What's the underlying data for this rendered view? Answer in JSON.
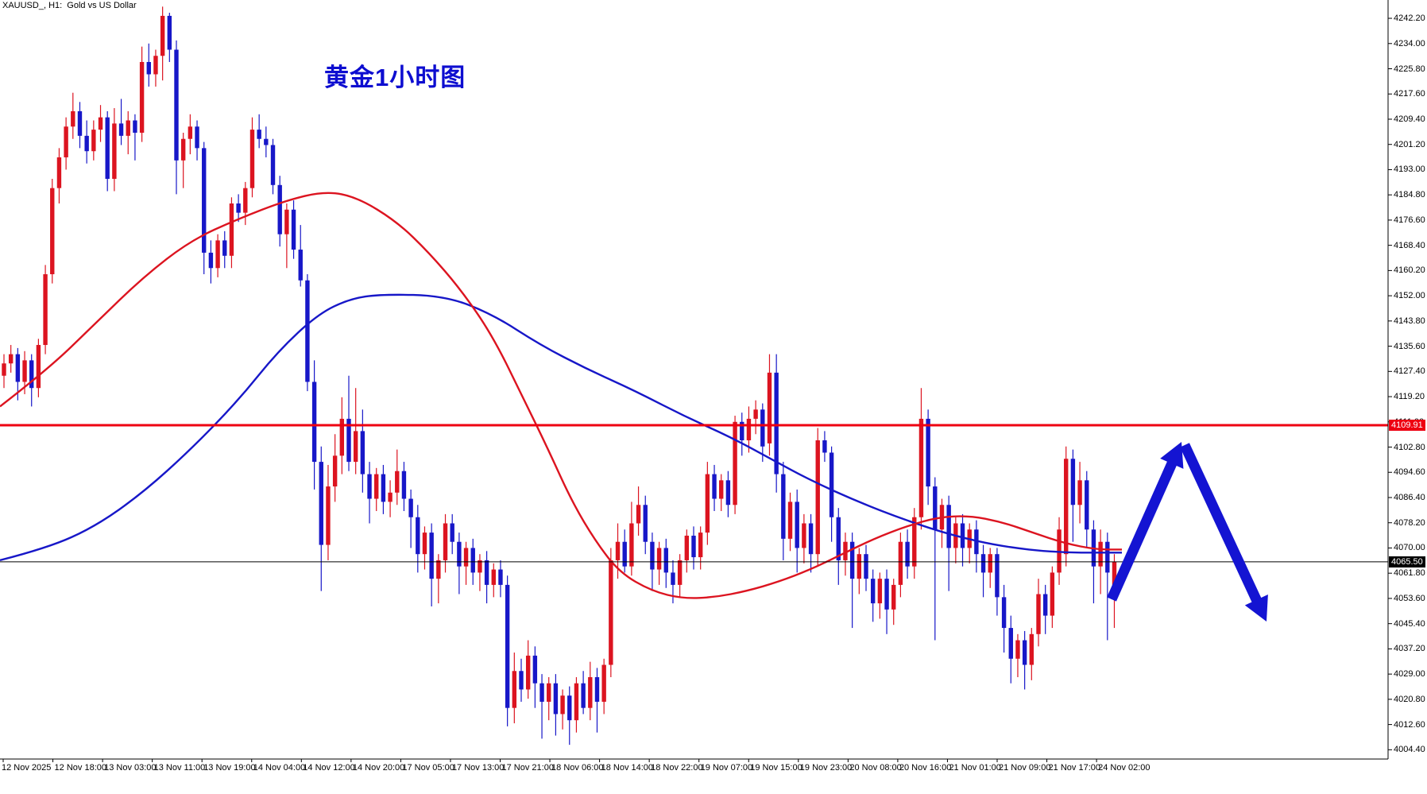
{
  "window": {
    "title": "XAUUSD_, H1:  Gold vs US Dollar"
  },
  "annotation": {
    "label": "黄金1小时图",
    "color": "#0d0dd0"
  },
  "colors": {
    "background": "#ffffff",
    "bull_candle": "#dc1420",
    "bear_candle": "#1717c8",
    "ma_red": "#dc1420",
    "ma_blue": "#1717c8",
    "resistance_line": "#ee0011",
    "bid_line": "#000000",
    "axis": "#000000",
    "arrow": "#1414d2"
  },
  "y_axis": {
    "labels": [
      "4242.20",
      "4234.00",
      "4225.80",
      "4217.60",
      "4209.40",
      "4201.20",
      "4193.00",
      "4184.80",
      "4176.60",
      "4168.40",
      "4160.20",
      "4152.00",
      "4143.80",
      "4135.60",
      "4127.40",
      "4119.20",
      "4111.00",
      "4102.80",
      "4094.60",
      "4086.40",
      "4078.20",
      "4070.00",
      "4061.80",
      "4053.60",
      "4045.40",
      "4037.20",
      "4029.00",
      "4020.80",
      "4012.60",
      "4004.40"
    ]
  },
  "x_axis": {
    "labels": [
      "12 Nov 2025",
      "12 Nov 18:00",
      "13 Nov 03:00",
      "13 Nov 11:00",
      "13 Nov 19:00",
      "14 Nov 04:00",
      "14 Nov 12:00",
      "14 Nov 20:00",
      "17 Nov 05:00",
      "17 Nov 13:00",
      "17 Nov 21:00",
      "18 Nov 06:00",
      "18 Nov 14:00",
      "18 Nov 22:00",
      "19 Nov 07:00",
      "19 Nov 15:00",
      "19 Nov 23:00",
      "20 Nov 08:00",
      "20 Nov 16:00",
      "21 Nov 01:00",
      "21 Nov 09:00",
      "21 Nov 17:00",
      "24 Nov 02:00"
    ]
  },
  "price_tags": {
    "resistance": {
      "text": "4109.91",
      "bg": "#ee0011",
      "fg": "#ffffff"
    },
    "bid": {
      "text": "4065.50",
      "bg": "#000000",
      "fg": "#ffffff"
    }
  },
  "chart_data": {
    "type": "candlestick",
    "symbol": "XAUUSD",
    "timeframe": "H1",
    "title": "黄金1小时图",
    "ylim": [
      4000.3,
      4246.5
    ],
    "y_tick_step": 8.2,
    "grid": false,
    "resistance_price": 4109.91,
    "bid_price": 4065.5,
    "candles": [
      [
        4126,
        4133,
        4122,
        4130
      ],
      [
        4130,
        4136,
        4127,
        4133
      ],
      [
        4133,
        4135,
        4118,
        4124
      ],
      [
        4124,
        4134,
        4120,
        4131
      ],
      [
        4131,
        4133,
        4116,
        4122
      ],
      [
        4122,
        4138,
        4119,
        4136
      ],
      [
        4136,
        4162,
        4133,
        4159
      ],
      [
        4159,
        4190,
        4156,
        4187
      ],
      [
        4187,
        4200,
        4182,
        4197
      ],
      [
        4197,
        4210,
        4193,
        4207
      ],
      [
        4207,
        4218,
        4203,
        4212
      ],
      [
        4212,
        4215,
        4200,
        4204
      ],
      [
        4204,
        4209,
        4195,
        4199
      ],
      [
        4199,
        4209,
        4196,
        4206
      ],
      [
        4206,
        4214,
        4202,
        4210
      ],
      [
        4210,
        4212,
        4186,
        4190
      ],
      [
        4190,
        4213,
        4186,
        4208
      ],
      [
        4208,
        4216,
        4201,
        4204
      ],
      [
        4204,
        4212,
        4198,
        4209
      ],
      [
        4209,
        4211,
        4196,
        4205
      ],
      [
        4205,
        4233,
        4202,
        4228
      ],
      [
        4228,
        4234,
        4220,
        4224
      ],
      [
        4224,
        4232,
        4220,
        4230
      ],
      [
        4230,
        4246,
        4222,
        4243
      ],
      [
        4243,
        4244,
        4228,
        4232
      ],
      [
        4232,
        4235,
        4185,
        4196
      ],
      [
        4196,
        4205,
        4187,
        4203
      ],
      [
        4203,
        4211,
        4198,
        4207
      ],
      [
        4207,
        4209,
        4196,
        4200
      ],
      [
        4200,
        4202,
        4159,
        4166
      ],
      [
        4166,
        4170,
        4156,
        4161
      ],
      [
        4161,
        4172,
        4158,
        4170
      ],
      [
        4170,
        4173,
        4161,
        4165
      ],
      [
        4165,
        4184,
        4161,
        4182
      ],
      [
        4182,
        4185,
        4176,
        4179
      ],
      [
        4179,
        4189,
        4175,
        4187
      ],
      [
        4187,
        4210,
        4184,
        4206
      ],
      [
        4206,
        4211,
        4200,
        4203
      ],
      [
        4203,
        4207,
        4197,
        4201
      ],
      [
        4201,
        4203,
        4185,
        4188
      ],
      [
        4188,
        4191,
        4168,
        4172
      ],
      [
        4172,
        4182,
        4161,
        4180
      ],
      [
        4180,
        4183,
        4164,
        4167
      ],
      [
        4167,
        4175,
        4155,
        4157
      ],
      [
        4157,
        4159,
        4121,
        4124
      ],
      [
        4124,
        4131,
        4089,
        4098
      ],
      [
        4098,
        4103,
        4056,
        4071
      ],
      [
        4071,
        4097,
        4066,
        4090
      ],
      [
        4090,
        4107,
        4085,
        4100
      ],
      [
        4100,
        4119,
        4094,
        4112
      ],
      [
        4112,
        4126,
        4095,
        4098
      ],
      [
        4098,
        4122,
        4094,
        4108
      ],
      [
        4108,
        4115,
        4088,
        4094
      ],
      [
        4094,
        4098,
        4078,
        4086
      ],
      [
        4086,
        4096,
        4082,
        4094
      ],
      [
        4094,
        4097,
        4081,
        4085
      ],
      [
        4085,
        4092,
        4080,
        4088
      ],
      [
        4088,
        4102,
        4084,
        4095
      ],
      [
        4095,
        4098,
        4082,
        4086
      ],
      [
        4086,
        4089,
        4070,
        4080
      ],
      [
        4080,
        4084,
        4062,
        4068
      ],
      [
        4068,
        4077,
        4063,
        4075
      ],
      [
        4075,
        4078,
        4051,
        4060
      ],
      [
        4060,
        4068,
        4052,
        4066
      ],
      [
        4066,
        4081,
        4062,
        4078
      ],
      [
        4078,
        4081,
        4068,
        4072
      ],
      [
        4072,
        4075,
        4055,
        4064
      ],
      [
        4064,
        4072,
        4058,
        4070
      ],
      [
        4070,
        4073,
        4058,
        4062
      ],
      [
        4062,
        4068,
        4056,
        4066
      ],
      [
        4066,
        4069,
        4052,
        4058
      ],
      [
        4058,
        4065,
        4054,
        4063
      ],
      [
        4063,
        4066,
        4054,
        4058
      ],
      [
        4058,
        4061,
        4012,
        4018
      ],
      [
        4018,
        4036,
        4013,
        4030
      ],
      [
        4030,
        4034,
        4020,
        4024
      ],
      [
        4024,
        4040,
        4021,
        4035
      ],
      [
        4035,
        4038,
        4018,
        4026
      ],
      [
        4026,
        4029,
        4008,
        4020
      ],
      [
        4020,
        4028,
        4014,
        4026
      ],
      [
        4026,
        4029,
        4009,
        4016
      ],
      [
        4016,
        4024,
        4011,
        4022
      ],
      [
        4022,
        4025,
        4006,
        4014
      ],
      [
        4014,
        4028,
        4010,
        4026
      ],
      [
        4026,
        4030,
        4016,
        4018
      ],
      [
        4018,
        4033,
        4014,
        4028
      ],
      [
        4028,
        4031,
        4010,
        4020
      ],
      [
        4020,
        4034,
        4016,
        4032
      ],
      [
        4032,
        4070,
        4028,
        4066
      ],
      [
        4066,
        4078,
        4060,
        4072
      ],
      [
        4072,
        4076,
        4062,
        4064
      ],
      [
        4064,
        4085,
        4061,
        4078
      ],
      [
        4078,
        4090,
        4074,
        4084
      ],
      [
        4084,
        4087,
        4068,
        4072
      ],
      [
        4072,
        4075,
        4056,
        4063
      ],
      [
        4063,
        4072,
        4058,
        4070
      ],
      [
        4070,
        4073,
        4057,
        4062
      ],
      [
        4062,
        4066,
        4052,
        4058
      ],
      [
        4058,
        4068,
        4054,
        4066
      ],
      [
        4066,
        4076,
        4062,
        4074
      ],
      [
        4074,
        4077,
        4063,
        4067
      ],
      [
        4067,
        4077,
        4063,
        4075
      ],
      [
        4075,
        4098,
        4071,
        4094
      ],
      [
        4094,
        4097,
        4082,
        4086
      ],
      [
        4086,
        4094,
        4082,
        4092
      ],
      [
        4092,
        4095,
        4080,
        4084
      ],
      [
        4084,
        4113,
        4081,
        4111
      ],
      [
        4111,
        4114,
        4100,
        4105
      ],
      [
        4105,
        4116,
        4101,
        4112
      ],
      [
        4112,
        4118,
        4107,
        4115
      ],
      [
        4115,
        4117,
        4098,
        4103
      ],
      [
        4104,
        4133,
        4100,
        4127
      ],
      [
        4127,
        4133,
        4088,
        4094
      ],
      [
        4094,
        4098,
        4066,
        4073
      ],
      [
        4073,
        4088,
        4069,
        4085
      ],
      [
        4085,
        4089,
        4062,
        4070
      ],
      [
        4070,
        4081,
        4065,
        4078
      ],
      [
        4078,
        4081,
        4062,
        4068
      ],
      [
        4068,
        4109,
        4064,
        4105
      ],
      [
        4105,
        4108,
        4098,
        4101
      ],
      [
        4101,
        4103,
        4072,
        4080
      ],
      [
        4080,
        4083,
        4058,
        4066
      ],
      [
        4066,
        4075,
        4061,
        4072
      ],
      [
        4072,
        4075,
        4044,
        4060
      ],
      [
        4060,
        4070,
        4055,
        4068
      ],
      [
        4068,
        4071,
        4056,
        4060
      ],
      [
        4060,
        4063,
        4046,
        4052
      ],
      [
        4052,
        4062,
        4047,
        4060
      ],
      [
        4060,
        4063,
        4042,
        4050
      ],
      [
        4050,
        4060,
        4045,
        4058
      ],
      [
        4058,
        4075,
        4054,
        4072
      ],
      [
        4072,
        4076,
        4060,
        4064
      ],
      [
        4064,
        4083,
        4060,
        4080
      ],
      [
        4080,
        4122,
        4076,
        4112
      ],
      [
        4112,
        4115,
        4084,
        4090
      ],
      [
        4090,
        4093,
        4040,
        4076
      ],
      [
        4076,
        4086,
        4070,
        4084
      ],
      [
        4084,
        4087,
        4056,
        4070
      ],
      [
        4070,
        4080,
        4065,
        4078
      ],
      [
        4078,
        4081,
        4064,
        4070
      ],
      [
        4070,
        4078,
        4065,
        4076
      ],
      [
        4076,
        4079,
        4062,
        4068
      ],
      [
        4068,
        4071,
        4054,
        4062
      ],
      [
        4062,
        4070,
        4057,
        4068
      ],
      [
        4068,
        4070,
        4048,
        4054
      ],
      [
        4054,
        4058,
        4036,
        4044
      ],
      [
        4044,
        4048,
        4026,
        4034
      ],
      [
        4034,
        4042,
        4028,
        4040
      ],
      [
        4040,
        4043,
        4024,
        4032
      ],
      [
        4032,
        4044,
        4027,
        4042
      ],
      [
        4042,
        4060,
        4038,
        4055
      ],
      [
        4055,
        4058,
        4042,
        4048
      ],
      [
        4048,
        4064,
        4044,
        4062
      ],
      [
        4062,
        4080,
        4058,
        4076
      ],
      [
        4068,
        4103,
        4064,
        4099
      ],
      [
        4099,
        4102,
        4072,
        4084
      ],
      [
        4084,
        4098,
        4078,
        4092
      ],
      [
        4092,
        4095,
        4070,
        4076
      ],
      [
        4076,
        4079,
        4052,
        4064
      ],
      [
        4064,
        4076,
        4055,
        4072
      ],
      [
        4072,
        4075,
        4040,
        4062
      ],
      [
        4058,
        4068,
        4044,
        4065.5
      ]
    ],
    "ma_red": [
      [
        0,
        4116
      ],
      [
        60,
        4128
      ],
      [
        120,
        4143
      ],
      [
        180,
        4158
      ],
      [
        240,
        4170
      ],
      [
        300,
        4177
      ],
      [
        360,
        4183
      ],
      [
        410,
        4186
      ],
      [
        450,
        4184
      ],
      [
        500,
        4176
      ],
      [
        540,
        4166
      ],
      [
        580,
        4154
      ],
      [
        620,
        4139
      ],
      [
        660,
        4118
      ],
      [
        690,
        4102
      ],
      [
        720,
        4085
      ],
      [
        750,
        4072
      ],
      [
        780,
        4062
      ],
      [
        820,
        4056
      ],
      [
        860,
        4053.5
      ],
      [
        900,
        4054
      ],
      [
        940,
        4056
      ],
      [
        980,
        4059
      ],
      [
        1020,
        4063
      ],
      [
        1060,
        4068
      ],
      [
        1100,
        4073
      ],
      [
        1140,
        4077
      ],
      [
        1180,
        4080
      ],
      [
        1220,
        4080.5
      ],
      [
        1260,
        4078.5
      ],
      [
        1300,
        4075
      ],
      [
        1340,
        4071.5
      ],
      [
        1380,
        4069.5
      ],
      [
        1412,
        4069.5
      ]
    ],
    "ma_blue": [
      [
        0,
        4066
      ],
      [
        60,
        4070
      ],
      [
        120,
        4077
      ],
      [
        180,
        4088
      ],
      [
        240,
        4102
      ],
      [
        300,
        4118
      ],
      [
        350,
        4134
      ],
      [
        400,
        4146
      ],
      [
        440,
        4151
      ],
      [
        480,
        4152.5
      ],
      [
        560,
        4152
      ],
      [
        620,
        4146
      ],
      [
        680,
        4136
      ],
      [
        740,
        4128
      ],
      [
        800,
        4121
      ],
      [
        860,
        4113
      ],
      [
        920,
        4106
      ],
      [
        970,
        4099
      ],
      [
        1020,
        4092
      ],
      [
        1080,
        4085
      ],
      [
        1140,
        4079
      ],
      [
        1200,
        4074
      ],
      [
        1260,
        4070.5
      ],
      [
        1330,
        4068.5
      ],
      [
        1412,
        4068.5
      ]
    ],
    "forecast_arrows": [
      {
        "from": [
          1399,
          754
        ],
        "to": [
          1487,
          556
        ],
        "direction": "up"
      },
      {
        "from": [
          1491,
          560
        ],
        "to": [
          1594,
          782
        ],
        "direction": "down"
      }
    ]
  }
}
